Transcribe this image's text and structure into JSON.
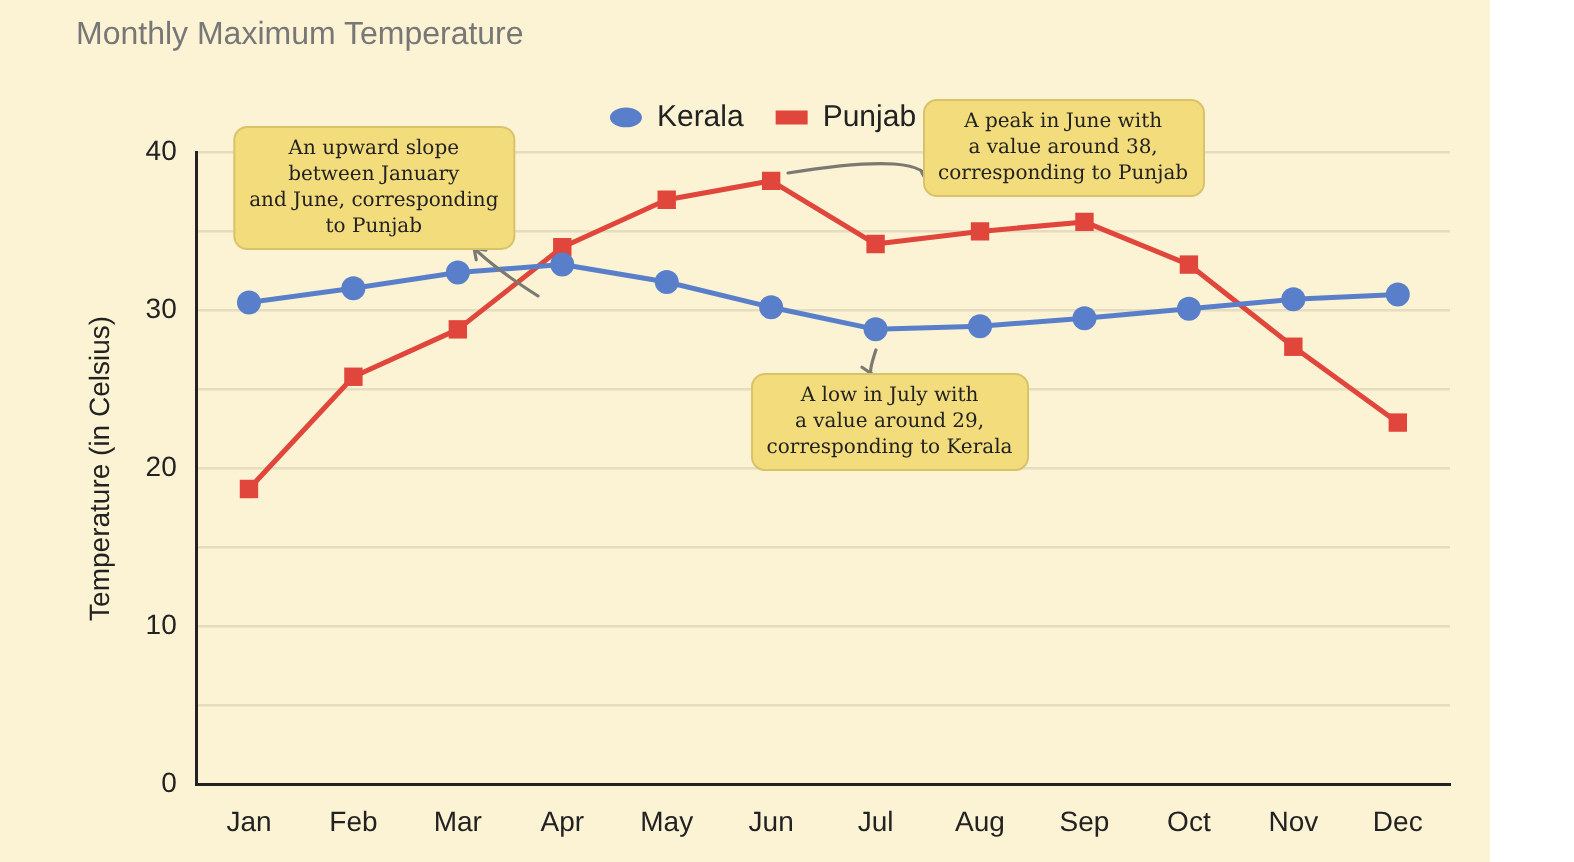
{
  "chart_data": {
    "type": "line",
    "title": "Monthly Maximum Temperature",
    "ylabel": "Temperature (in Celsius)",
    "categories": [
      "Jan",
      "Feb",
      "Mar",
      "Apr",
      "May",
      "Jun",
      "Jul",
      "Aug",
      "Sep",
      "Oct",
      "Nov",
      "Dec"
    ],
    "series": [
      {
        "name": "Kerala",
        "color": "#5a7fca",
        "marker": "circle",
        "values": [
          30.5,
          31.4,
          32.4,
          32.9,
          31.8,
          30.2,
          28.8,
          29.0,
          29.5,
          30.1,
          30.7,
          31.0
        ]
      },
      {
        "name": "Punjab",
        "color": "#e0463b",
        "marker": "square",
        "values": [
          18.7,
          25.8,
          28.8,
          34.0,
          37.0,
          38.2,
          34.2,
          35.0,
          35.6,
          32.9,
          27.7,
          22.9
        ]
      }
    ],
    "ylim": [
      0,
      40
    ],
    "yticks": [
      0,
      {
        "value": 5,
        "label": null
      },
      10,
      {
        "value": 15,
        "label": null
      },
      20,
      {
        "value": 25,
        "label": null
      },
      30,
      {
        "value": 35,
        "label": null
      },
      40
    ],
    "grid": "y",
    "legend": "top",
    "annotations": [
      {
        "text": "An upward slope\nbetween January\nand June, corresponding\nto Punjab",
        "x": "Mar",
        "y": 32.4
      },
      {
        "text": "A peak in June with\na value around 38,\ncorresponding to Punjab",
        "x": "Jun",
        "y": 38.2
      },
      {
        "text": "A low in July with\na value around 29,\ncorresponding to Kerala",
        "x": "Jul",
        "y": 28.8
      }
    ]
  }
}
